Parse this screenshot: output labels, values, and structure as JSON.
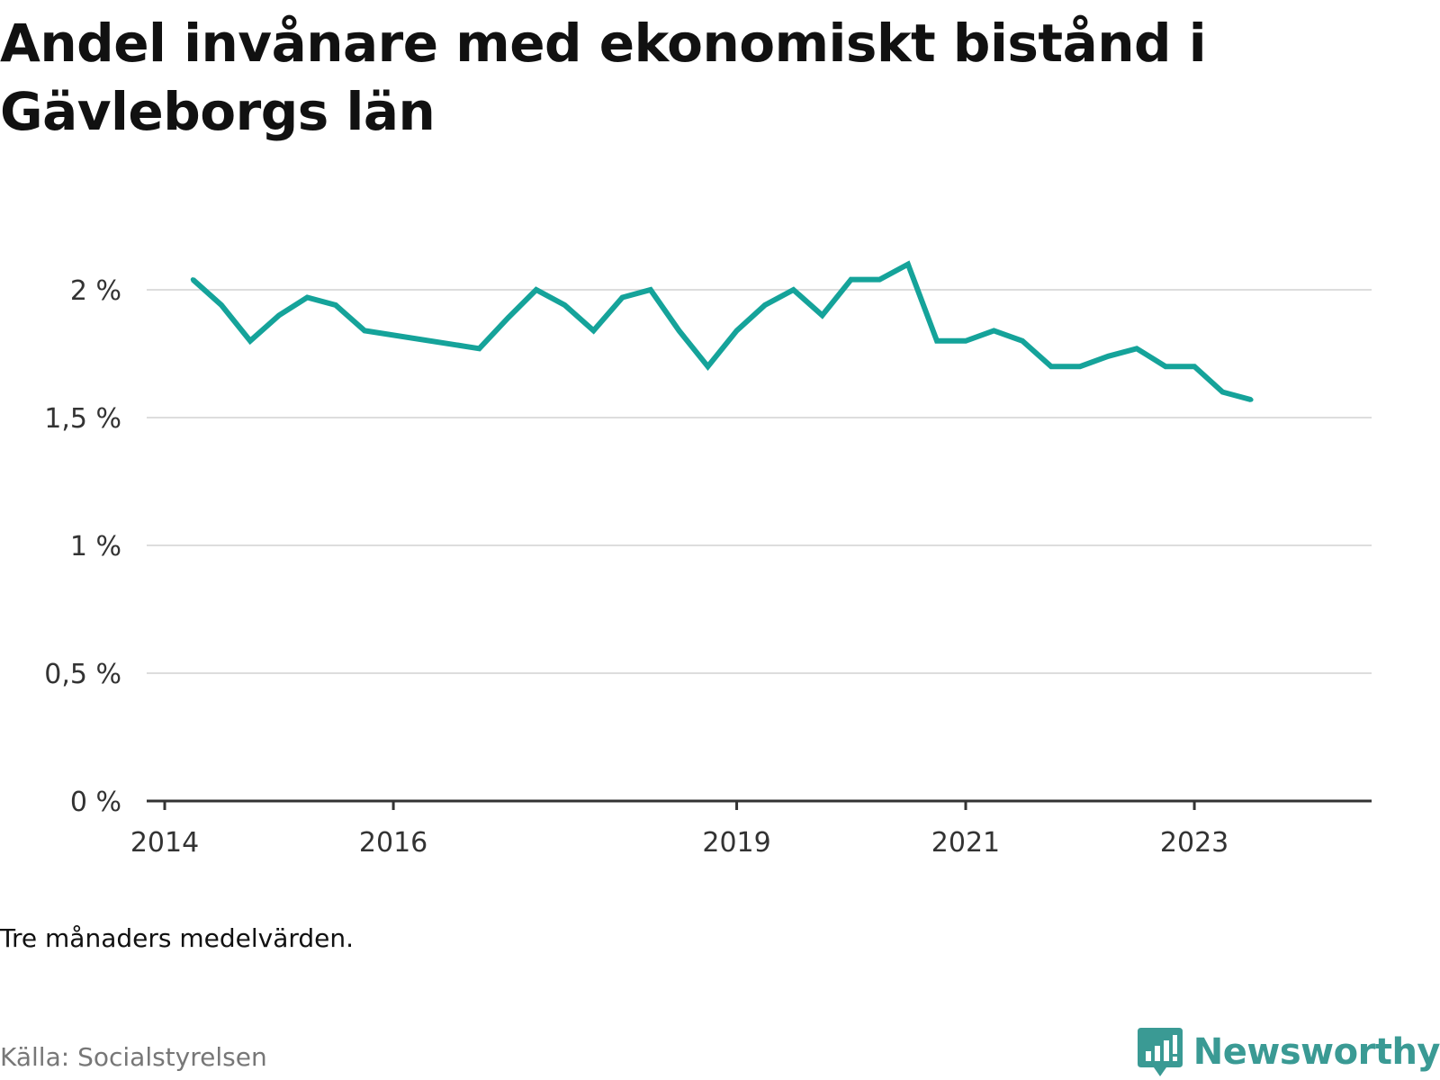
{
  "title": "Andel invånare med ekonomiskt bistånd i Gävleborgs län",
  "note": "Tre månaders medelvärden.",
  "source": "Källa: Socialstyrelsen",
  "brand": {
    "name": "Newsworthy",
    "icon": "newsworthy-logo-icon",
    "color": "#3a9a94"
  },
  "colors": {
    "line": "#15a39a",
    "grid": "#dddddd",
    "axis": "#333333"
  },
  "chart_data": {
    "type": "line",
    "title": "Andel invånare med ekonomiskt bistånd i Gävleborgs län",
    "xlabel": "",
    "ylabel": "",
    "ylim": [
      0,
      2.2
    ],
    "xlim": [
      "2014-01-01",
      "2024-03-01"
    ],
    "grid": true,
    "y_ticks": [
      {
        "value": 0,
        "label": "0 %"
      },
      {
        "value": 0.5,
        "label": "0,5 %"
      },
      {
        "value": 1,
        "label": "1 %"
      },
      {
        "value": 1.5,
        "label": "1,5 %"
      },
      {
        "value": 2,
        "label": "2 %"
      }
    ],
    "x_ticks": [
      {
        "value": "2014-01-01",
        "label": "2014"
      },
      {
        "value": "2016-01-01",
        "label": "2016"
      },
      {
        "value": "2019-01-01",
        "label": "2019"
      },
      {
        "value": "2021-01-01",
        "label": "2021"
      },
      {
        "value": "2023-01-01",
        "label": "2023"
      }
    ],
    "series": [
      {
        "color": "#15a39a",
        "points": [
          {
            "x": "2014-04",
            "y": 2.04
          },
          {
            "x": "2014-07",
            "y": 1.94
          },
          {
            "x": "2014-10",
            "y": 1.8
          },
          {
            "x": "2015-01",
            "y": 1.9
          },
          {
            "x": "2015-04",
            "y": 1.97
          },
          {
            "x": "2015-07",
            "y": 1.94
          },
          {
            "x": "2015-10",
            "y": 1.84
          },
          {
            "x": "2016-10",
            "y": 1.77
          },
          {
            "x": "2017-01",
            "y": 1.89
          },
          {
            "x": "2017-04",
            "y": 2.0
          },
          {
            "x": "2017-07",
            "y": 1.94
          },
          {
            "x": "2017-10",
            "y": 1.84
          },
          {
            "x": "2018-01",
            "y": 1.97
          },
          {
            "x": "2018-04",
            "y": 2.0
          },
          {
            "x": "2018-07",
            "y": 1.84
          },
          {
            "x": "2018-10",
            "y": 1.7
          },
          {
            "x": "2019-01",
            "y": 1.84
          },
          {
            "x": "2019-04",
            "y": 1.94
          },
          {
            "x": "2019-07",
            "y": 2.0
          },
          {
            "x": "2019-10",
            "y": 1.9
          },
          {
            "x": "2020-01",
            "y": 2.04
          },
          {
            "x": "2020-04",
            "y": 2.04
          },
          {
            "x": "2020-07",
            "y": 2.1
          },
          {
            "x": "2020-10",
            "y": 1.8
          },
          {
            "x": "2021-01",
            "y": 1.8
          },
          {
            "x": "2021-04",
            "y": 1.84
          },
          {
            "x": "2021-07",
            "y": 1.8
          },
          {
            "x": "2021-10",
            "y": 1.7
          },
          {
            "x": "2022-01",
            "y": 1.7
          },
          {
            "x": "2022-04",
            "y": 1.74
          },
          {
            "x": "2022-07",
            "y": 1.77
          },
          {
            "x": "2022-10",
            "y": 1.7
          },
          {
            "x": "2023-01",
            "y": 1.7
          },
          {
            "x": "2023-04",
            "y": 1.6
          },
          {
            "x": "2023-07",
            "y": 1.57
          }
        ]
      }
    ]
  }
}
